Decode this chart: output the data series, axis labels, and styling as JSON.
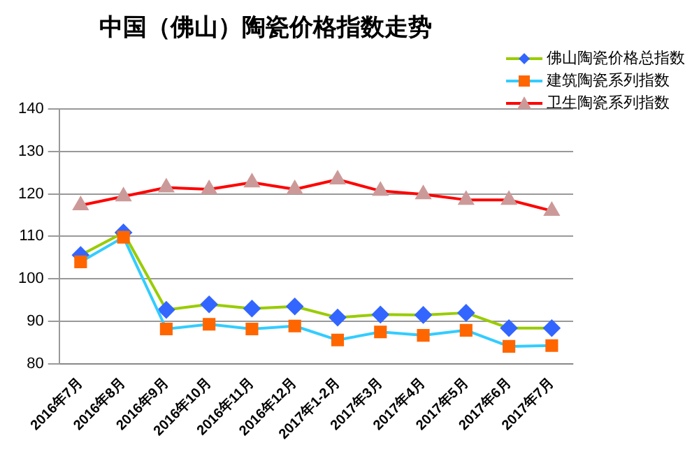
{
  "chart_data": {
    "type": "line",
    "title": "中国（佛山）陶瓷价格指数走势",
    "categories": [
      "2016年7月",
      "2016年8月",
      "2016年9月",
      "2016年10月",
      "2016年11月",
      "2016年12月",
      "2017年1-2月",
      "2017年3月",
      "2017年4月",
      "2017年5月",
      "2017年6月",
      "2017年7月"
    ],
    "series": [
      {
        "name": "佛山陶瓷价格总指数",
        "color": "#99cc00",
        "marker": "diamond",
        "values": [
          105.6,
          110.9,
          92.7,
          94,
          93,
          93.5,
          90.9,
          91.6,
          91.5,
          92,
          88.4,
          88.4
        ]
      },
      {
        "name": "建筑陶瓷系列指数",
        "color": "#33ccff",
        "marker": "square",
        "values": [
          104,
          109.8,
          88.2,
          89.3,
          88.2,
          88.9,
          85.6,
          87.5,
          86.7,
          87.9,
          84.1,
          84.3
        ]
      },
      {
        "name": "卫生陶瓷系列指数",
        "color": "#ff0000",
        "marker": "triangle",
        "values": [
          117.3,
          119.4,
          121.5,
          121.1,
          122.7,
          121.1,
          123.4,
          120.7,
          119.9,
          118.6,
          118.6,
          116
        ]
      }
    ],
    "ylim": [
      80,
      140
    ],
    "yticks": [
      80,
      90,
      100,
      110,
      120,
      130,
      140
    ],
    "grid": "y",
    "legend": "top right"
  }
}
